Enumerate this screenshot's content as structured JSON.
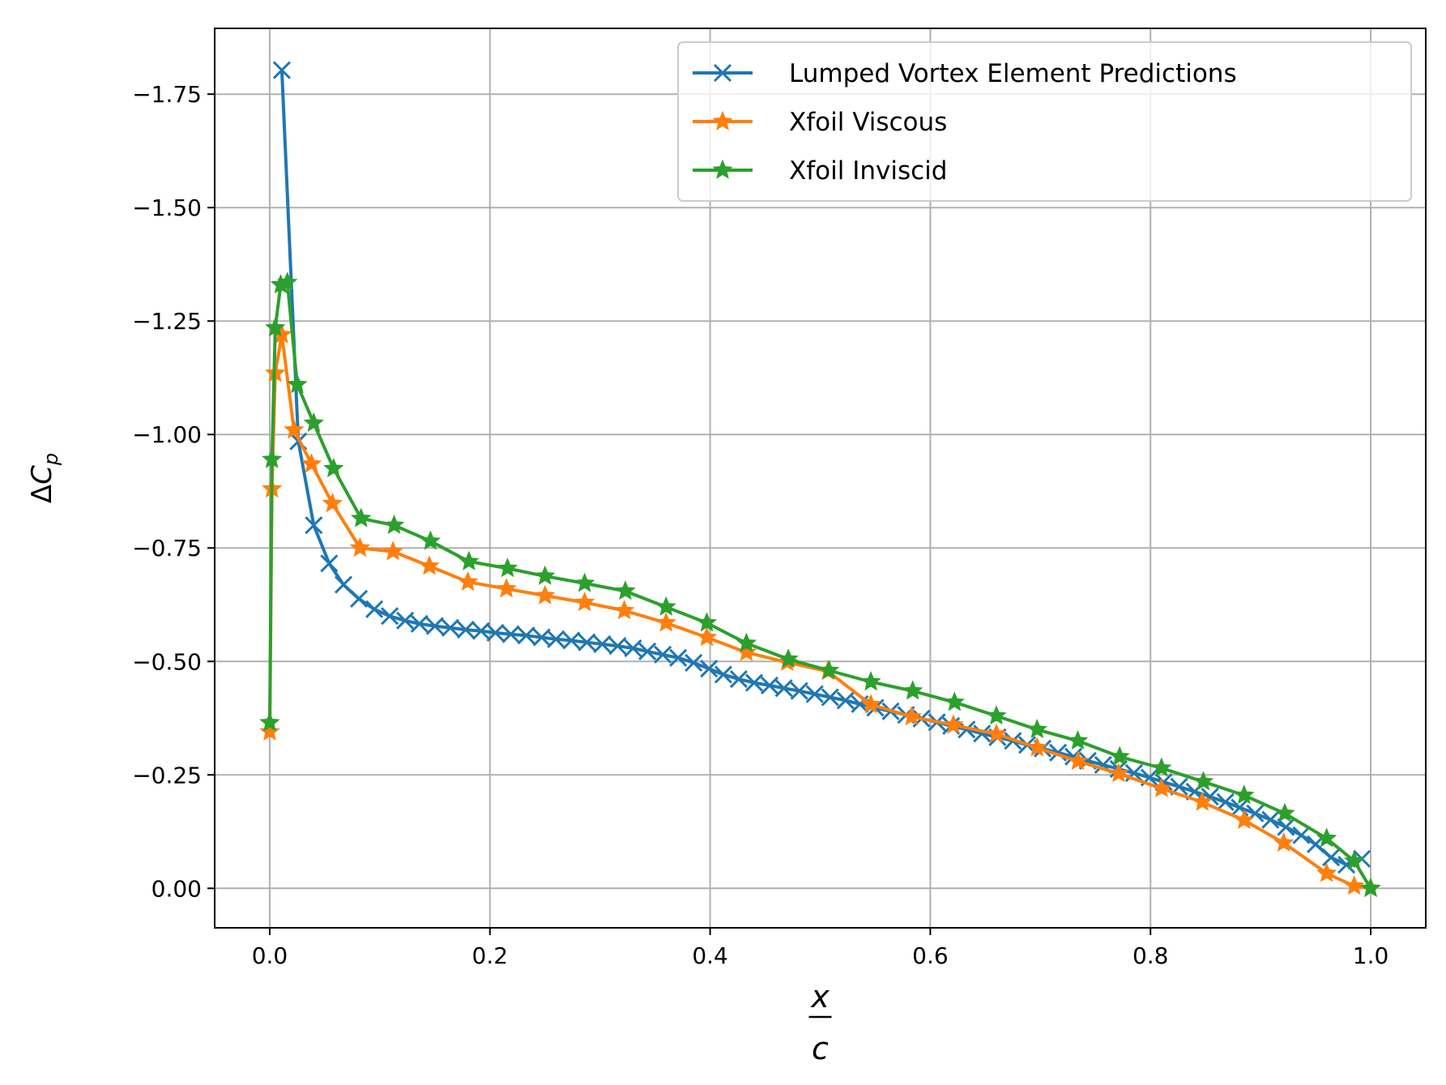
{
  "chart_data": {
    "type": "line",
    "title": "",
    "xlabel": {
      "numerator": "x",
      "denominator": "c"
    },
    "ylabel": {
      "delta": "Δ",
      "base": "C",
      "sub": "p"
    },
    "xlim": [
      -0.05,
      1.05
    ],
    "ylim": [
      0.087,
      -1.895
    ],
    "y_inverted": true,
    "grid": true,
    "legend_position": "top-right",
    "xticks": [
      0.0,
      0.2,
      0.4,
      0.6,
      0.8,
      1.0
    ],
    "xtick_labels": [
      "0.0",
      "0.2",
      "0.4",
      "0.6",
      "0.8",
      "1.0"
    ],
    "yticks": [
      -1.75,
      -1.5,
      -1.25,
      -1.0,
      -0.75,
      -0.5,
      -0.25,
      0.0
    ],
    "ytick_labels": [
      "−1.75",
      "−1.50",
      "−1.25",
      "−1.00",
      "−0.75",
      "−0.50",
      "−0.25",
      "0.00"
    ],
    "series": [
      {
        "name": "Lumped Vortex Element Predictions",
        "color": "#1f77b4",
        "marker": "x",
        "x": [
          0.011,
          0.026,
          0.04,
          0.054,
          0.067,
          0.081,
          0.095,
          0.109,
          0.123,
          0.136,
          0.15,
          0.164,
          0.178,
          0.192,
          0.205,
          0.219,
          0.233,
          0.247,
          0.26,
          0.274,
          0.288,
          0.302,
          0.316,
          0.33,
          0.343,
          0.357,
          0.371,
          0.385,
          0.399,
          0.412,
          0.426,
          0.44,
          0.454,
          0.467,
          0.481,
          0.495,
          0.509,
          0.523,
          0.536,
          0.55,
          0.564,
          0.578,
          0.592,
          0.606,
          0.619,
          0.633,
          0.647,
          0.661,
          0.675,
          0.688,
          0.702,
          0.716,
          0.73,
          0.743,
          0.757,
          0.771,
          0.785,
          0.799,
          0.812,
          0.826,
          0.84,
          0.854,
          0.868,
          0.881,
          0.895,
          0.909,
          0.923,
          0.937,
          0.95,
          0.964,
          0.978,
          0.992
        ],
        "y": [
          -1.803,
          -0.985,
          -0.8,
          -0.716,
          -0.669,
          -0.638,
          -0.615,
          -0.6,
          -0.59,
          -0.583,
          -0.578,
          -0.574,
          -0.57,
          -0.567,
          -0.563,
          -0.56,
          -0.557,
          -0.553,
          -0.549,
          -0.546,
          -0.542,
          -0.538,
          -0.534,
          -0.529,
          -0.522,
          -0.515,
          -0.508,
          -0.497,
          -0.484,
          -0.471,
          -0.461,
          -0.453,
          -0.447,
          -0.441,
          -0.435,
          -0.428,
          -0.421,
          -0.414,
          -0.406,
          -0.398,
          -0.39,
          -0.382,
          -0.374,
          -0.366,
          -0.358,
          -0.35,
          -0.341,
          -0.333,
          -0.325,
          -0.316,
          -0.308,
          -0.299,
          -0.29,
          -0.281,
          -0.272,
          -0.263,
          -0.254,
          -0.244,
          -0.234,
          -0.224,
          -0.213,
          -0.202,
          -0.19,
          -0.178,
          -0.165,
          -0.151,
          -0.135,
          -0.117,
          -0.097,
          -0.068,
          -0.052,
          -0.065
        ]
      },
      {
        "name": "Xfoil Viscous",
        "color": "#ff7f0e",
        "marker": "*",
        "x": [
          0.0,
          0.002,
          0.005,
          0.011,
          0.022,
          0.038,
          0.057,
          0.082,
          0.112,
          0.145,
          0.18,
          0.215,
          0.25,
          0.286,
          0.322,
          0.36,
          0.397,
          0.433,
          0.47,
          0.507,
          0.546,
          0.583,
          0.621,
          0.66,
          0.697,
          0.734,
          0.771,
          0.81,
          0.847,
          0.885,
          0.921,
          0.96,
          0.985,
          1.0
        ],
        "y": [
          -0.345,
          -0.88,
          -1.135,
          -1.22,
          -1.01,
          -0.935,
          -0.848,
          -0.75,
          -0.742,
          -0.71,
          -0.675,
          -0.66,
          -0.645,
          -0.63,
          -0.612,
          -0.585,
          -0.553,
          -0.52,
          -0.498,
          -0.478,
          -0.405,
          -0.378,
          -0.36,
          -0.34,
          -0.31,
          -0.28,
          -0.253,
          -0.22,
          -0.19,
          -0.15,
          -0.1,
          -0.033,
          -0.005,
          0.0
        ]
      },
      {
        "name": "Xfoil Inviscid",
        "color": "#2ca02c",
        "marker": "*",
        "x": [
          0.0,
          0.002,
          0.005,
          0.01,
          0.016,
          0.025,
          0.04,
          0.058,
          0.083,
          0.113,
          0.146,
          0.181,
          0.216,
          0.25,
          0.286,
          0.323,
          0.36,
          0.397,
          0.433,
          0.471,
          0.508,
          0.546,
          0.584,
          0.622,
          0.66,
          0.697,
          0.734,
          0.772,
          0.81,
          0.848,
          0.885,
          0.922,
          0.96,
          0.985,
          1.0
        ],
        "y": [
          -0.365,
          -0.945,
          -1.235,
          -1.33,
          -1.335,
          -1.11,
          -1.025,
          -0.925,
          -0.815,
          -0.8,
          -0.765,
          -0.72,
          -0.705,
          -0.688,
          -0.672,
          -0.655,
          -0.62,
          -0.585,
          -0.54,
          -0.505,
          -0.48,
          -0.455,
          -0.435,
          -0.41,
          -0.38,
          -0.35,
          -0.325,
          -0.29,
          -0.265,
          -0.235,
          -0.205,
          -0.165,
          -0.11,
          -0.06,
          0.0
        ]
      }
    ]
  }
}
